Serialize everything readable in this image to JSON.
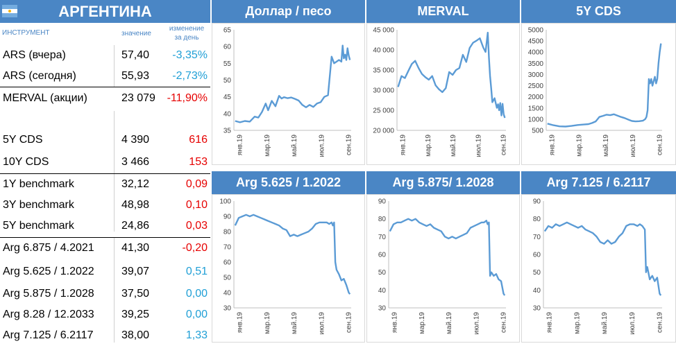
{
  "country": "АРГЕНТИНА",
  "columns": {
    "instrument": "ИНСТРУМЕНТ",
    "value": "значение",
    "change_line1": "изменение",
    "change_line2": "за день"
  },
  "rows": [
    {
      "name": "ARS (вчера)",
      "value": "57,40",
      "change": "-3,35%",
      "change_color": "#1f9fd6"
    },
    {
      "name": "ARS (сегодня)",
      "value": "55,93",
      "change": "-2,73%",
      "change_color": "#1f9fd6"
    },
    {
      "name": "MERVAL (акции)",
      "value": "23 079",
      "change": "-11,90%",
      "change_color": "#e60000"
    },
    {
      "name": "5Y CDS",
      "value": "4 390",
      "change": "616",
      "change_color": "#e60000"
    },
    {
      "name": "10Y CDS",
      "value": "3 466",
      "change": "153",
      "change_color": "#e60000"
    },
    {
      "name": "1Y benchmark",
      "value": "32,12",
      "change": "0,09",
      "change_color": "#e60000"
    },
    {
      "name": "3Y benchmark",
      "value": "48,98",
      "change": "0,10",
      "change_color": "#e60000"
    },
    {
      "name": "5Y benchmark",
      "value": "24,86",
      "change": "0,03",
      "change_color": "#e60000"
    },
    {
      "name": "Arg 6.875 / 4.2021",
      "value": "41,30",
      "change": "-0,20",
      "change_color": "#e60000"
    },
    {
      "name": "Arg 5.625 / 1.2022",
      "value": "39,07",
      "change": "0,51",
      "change_color": "#1f9fd6"
    },
    {
      "name": "Arg 5.875 / 1.2028",
      "value": "37,50",
      "change": "0,00",
      "change_color": "#1f9fd6"
    },
    {
      "name": "Arg 8.28 / 12.2033",
      "value": "39,25",
      "change": "0,00",
      "change_color": "#1f9fd6"
    },
    {
      "name": "Arg 7.125 / 6.2117",
      "value": "38,00",
      "change": "1,33",
      "change_color": "#1f9fd6"
    }
  ],
  "line_color": "#5b9bd5",
  "chart_data": [
    {
      "type": "line",
      "title": "Доллар / песо",
      "ylim": [
        35,
        65
      ],
      "yticks": [
        35,
        40,
        45,
        50,
        55,
        60,
        65
      ],
      "ytick_labels": [
        "35",
        "40",
        "45",
        "50",
        "55",
        "60",
        "65"
      ],
      "x_tick_labels": [
        "янв.19",
        "мар.19",
        "май.19",
        "июл.19",
        "сен.19"
      ],
      "x": [
        1,
        5,
        9,
        13,
        17,
        20,
        23,
        26,
        28,
        31,
        34,
        37,
        39,
        41,
        44,
        47,
        50,
        53,
        56,
        59,
        62,
        65,
        68,
        71,
        74,
        77,
        80,
        82,
        84,
        86,
        88,
        89,
        90,
        91,
        92,
        93,
        94,
        95
      ],
      "y": [
        37.8,
        37.4,
        37.8,
        37.6,
        39.1,
        38.8,
        40.5,
        43.0,
        41.0,
        43.8,
        42.2,
        45.3,
        44.5,
        44.9,
        44.6,
        44.8,
        44.4,
        43.9,
        42.6,
        41.9,
        42.6,
        42.0,
        43.0,
        43.4,
        45.0,
        45.5,
        57.0,
        55.0,
        55.5,
        56.0,
        55.5,
        60.3,
        56.5,
        57.6,
        56.0,
        59.5,
        57.3,
        56.0
      ]
    },
    {
      "type": "line",
      "title": "MERVAL",
      "ylim": [
        20000,
        45000
      ],
      "yticks": [
        20000,
        25000,
        30000,
        35000,
        40000,
        45000
      ],
      "ytick_labels": [
        "20 000",
        "25 000",
        "30 000",
        "35 000",
        "40 000",
        "45 000"
      ],
      "x_tick_labels": [
        "янв.19",
        "мар.19",
        "май.19",
        "июл.19",
        "сен.19"
      ],
      "x": [
        1,
        4,
        7,
        10,
        13,
        16,
        19,
        22,
        25,
        28,
        31,
        34,
        37,
        40,
        43,
        46,
        49,
        52,
        55,
        58,
        61,
        64,
        67,
        70,
        73,
        76,
        78,
        80,
        81,
        82,
        83,
        84,
        86,
        88,
        89,
        90,
        91,
        92,
        93,
        94,
        95
      ],
      "y": [
        30800,
        33500,
        33000,
        34800,
        36500,
        37300,
        35500,
        34000,
        33200,
        32600,
        33500,
        31200,
        30200,
        29500,
        30500,
        34500,
        33800,
        35000,
        35500,
        38800,
        37000,
        40500,
        41800,
        42300,
        42900,
        40600,
        39500,
        44300,
        38000,
        33500,
        30500,
        27000,
        28000,
        25600,
        26500,
        25000,
        26800,
        23700,
        26600,
        24000,
        23100
      ]
    },
    {
      "type": "line",
      "title": "5Y CDS",
      "ylim": [
        500,
        5000
      ],
      "yticks": [
        500,
        1000,
        1500,
        2000,
        2500,
        3000,
        3500,
        4000,
        4500,
        5000
      ],
      "ytick_labels": [
        "500",
        "1000",
        "1500",
        "2000",
        "2500",
        "3000",
        "3500",
        "4000",
        "4500",
        "5000"
      ],
      "x_tick_labels": [
        "янв.19",
        "мар.19",
        "май.19",
        "июл.19",
        "сен.19"
      ],
      "x": [
        1,
        6,
        11,
        16,
        21,
        26,
        31,
        35,
        38,
        41,
        44,
        47,
        50,
        53,
        56,
        59,
        62,
        65,
        68,
        71,
        74,
        77,
        80,
        82,
        83,
        84,
        85,
        86,
        87,
        88,
        89,
        90,
        91,
        92,
        93,
        94,
        95
      ],
      "y": [
        800,
        730,
        680,
        670,
        700,
        740,
        760,
        780,
        830,
        900,
        1100,
        1150,
        1200,
        1180,
        1220,
        1160,
        1100,
        1050,
        980,
        920,
        900,
        910,
        930,
        1000,
        1100,
        1400,
        2800,
        2600,
        2800,
        2500,
        2700,
        2900,
        2600,
        2800,
        3500,
        4000,
        4390
      ]
    },
    {
      "type": "line",
      "title": "Arg 5.625 / 1.2022",
      "ylim": [
        30,
        100
      ],
      "yticks": [
        30,
        40,
        50,
        60,
        70,
        80,
        90,
        100
      ],
      "ytick_labels": [
        "30",
        "40",
        "50",
        "60",
        "70",
        "80",
        "90",
        "100"
      ],
      "x_tick_labels": [
        "янв.19",
        "мар.19",
        "май.19",
        "июл.19",
        "сен.19"
      ],
      "x": [
        1,
        4,
        7,
        10,
        13,
        16,
        19,
        22,
        25,
        28,
        31,
        34,
        37,
        40,
        43,
        46,
        49,
        52,
        55,
        58,
        61,
        64,
        67,
        70,
        73,
        76,
        78,
        80,
        81,
        82,
        83,
        84,
        86,
        88,
        90,
        92,
        94,
        95
      ],
      "y": [
        84,
        89,
        90,
        91,
        90,
        91,
        90,
        89,
        88,
        87,
        86,
        85,
        84,
        82,
        81,
        77,
        78,
        77,
        78,
        79,
        80,
        82,
        85,
        86,
        86,
        86,
        85,
        86,
        84,
        86,
        60,
        55,
        52,
        48,
        49,
        45,
        40,
        39
      ]
    },
    {
      "type": "line",
      "title": "Arg 5.875/ 1.2028",
      "ylim": [
        30,
        90
      ],
      "yticks": [
        30,
        40,
        50,
        60,
        70,
        80,
        90
      ],
      "ytick_labels": [
        "30",
        "40",
        "50",
        "60",
        "70",
        "80",
        "90"
      ],
      "x_tick_labels": [
        "янв.19",
        "мар.19",
        "май.19",
        "июл.19",
        "сен.19"
      ],
      "x": [
        1,
        4,
        7,
        10,
        13,
        16,
        19,
        22,
        25,
        28,
        31,
        34,
        37,
        40,
        43,
        46,
        49,
        52,
        55,
        58,
        61,
        64,
        67,
        70,
        73,
        76,
        78,
        80,
        81,
        82,
        83,
        84,
        86,
        88,
        90,
        92,
        94,
        95
      ],
      "y": [
        73,
        77,
        78,
        78,
        79,
        80,
        79,
        80,
        78,
        77,
        76,
        77,
        75,
        74,
        73,
        70,
        69,
        70,
        69,
        70,
        71,
        72,
        75,
        76,
        77,
        78,
        78,
        79,
        77,
        78,
        48,
        50,
        48,
        49,
        46,
        45,
        38,
        37
      ]
    },
    {
      "type": "line",
      "title": "Arg 7.125 / 6.2117",
      "ylim": [
        30,
        90
      ],
      "yticks": [
        30,
        40,
        50,
        60,
        70,
        80,
        90
      ],
      "ytick_labels": [
        "30",
        "40",
        "50",
        "60",
        "70",
        "80",
        "90"
      ],
      "x_tick_labels": [
        "янв.19",
        "мар.19",
        "май.19",
        "июл.19",
        "сен.19"
      ],
      "x": [
        1,
        4,
        7,
        10,
        13,
        16,
        19,
        22,
        25,
        28,
        31,
        34,
        37,
        40,
        43,
        46,
        49,
        52,
        55,
        58,
        61,
        64,
        67,
        70,
        73,
        76,
        78,
        80,
        81,
        82,
        83,
        84,
        86,
        88,
        90,
        92,
        94,
        95
      ],
      "y": [
        73,
        76,
        75,
        77,
        76,
        77,
        78,
        77,
        76,
        75,
        76,
        74,
        73,
        72,
        70,
        67,
        66,
        68,
        66,
        67,
        70,
        72,
        76,
        77,
        77,
        76,
        77,
        76,
        75,
        74,
        50,
        53,
        46,
        48,
        45,
        47,
        38,
        37
      ]
    }
  ]
}
